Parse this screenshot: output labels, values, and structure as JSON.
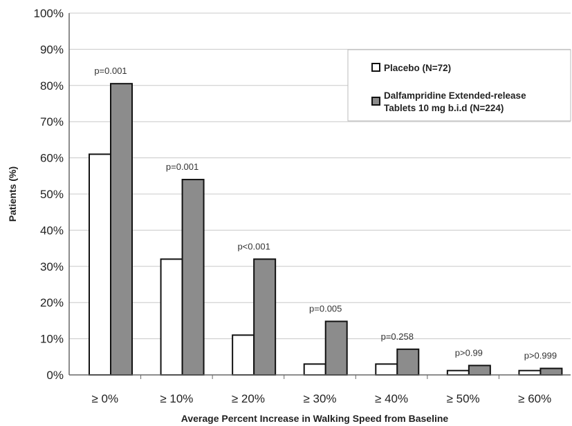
{
  "chart_data": {
    "type": "bar",
    "title": "",
    "xlabel": "Average Percent Increase in Walking Speed from Baseline",
    "ylabel": "Patients (%)",
    "ylim": [
      0,
      100
    ],
    "yticks": [
      "0%",
      "10%",
      "20%",
      "30%",
      "40%",
      "50%",
      "60%",
      "70%",
      "80%",
      "90%",
      "100%"
    ],
    "grid": true,
    "legend_position": "top-right",
    "categories": [
      "≥ 0%",
      "≥ 10%",
      "≥ 20%",
      "≥ 30%",
      "≥ 40%",
      "≥ 50%",
      "≥ 60%"
    ],
    "series": [
      {
        "name": "Placebo (N=72)",
        "color": "#ffffff",
        "values": [
          61,
          32,
          11,
          3,
          3,
          1.2,
          1.2
        ]
      },
      {
        "name_line1": "Dalfampridine Extended-release",
        "name_line2": "Tablets 10 mg b.i.d (N=224)",
        "color": "#8c8c8c",
        "values": [
          80.5,
          54,
          32,
          14.8,
          7.1,
          2.6,
          1.8
        ]
      }
    ],
    "annotations": [
      "p=0.001",
      "p=0.001",
      "p<0.001",
      "p=0.005",
      "p=0.258",
      "p>0.99",
      "p>0.999"
    ]
  }
}
